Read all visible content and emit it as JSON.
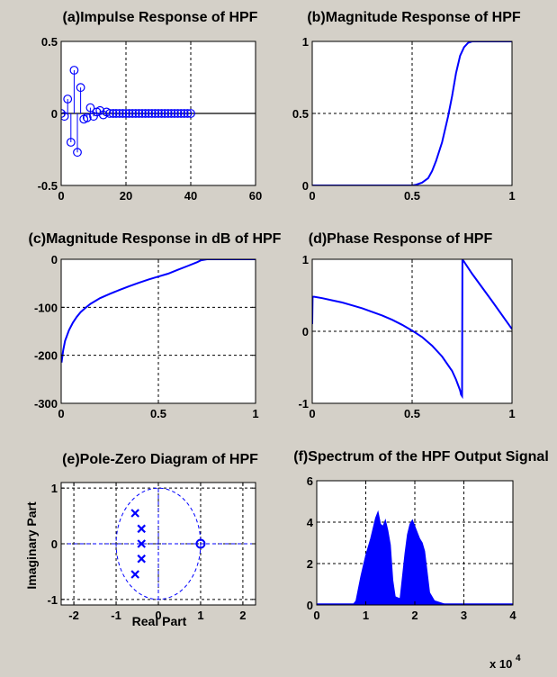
{
  "colors": {
    "figure_bg": "#d4d0c8",
    "axes_bg": "#ffffff",
    "line": "#0000ff",
    "axis": "#000000"
  },
  "chart_data": [
    {
      "id": "a",
      "type": "stem",
      "title": "(a)Impulse Response of HPF",
      "xlim": [
        0,
        60
      ],
      "ylim": [
        -0.5,
        0.5
      ],
      "xticks": [
        0,
        20,
        40,
        60
      ],
      "yticks": [
        -0.5,
        0,
        0.5
      ],
      "xticklabels": [
        "0",
        "20",
        "40",
        "60"
      ],
      "yticklabels": [
        "-0.5",
        "0",
        "0.5"
      ],
      "grid": true,
      "zero_line": true,
      "x": [
        0,
        1,
        2,
        3,
        4,
        5,
        6,
        7,
        8,
        9,
        10,
        11,
        12,
        13,
        14,
        15,
        16,
        17,
        18,
        19,
        20,
        21,
        22,
        23,
        24,
        25,
        26,
        27,
        28,
        29,
        30,
        31,
        32,
        33,
        34,
        35,
        36,
        37,
        38,
        39,
        40
      ],
      "y": [
        0,
        -0.02,
        0.1,
        -0.2,
        0.3,
        -0.27,
        0.18,
        -0.04,
        -0.03,
        0.04,
        -0.02,
        0.01,
        0.02,
        -0.01,
        0.01,
        0,
        0,
        0,
        0,
        0,
        0,
        0,
        0,
        0,
        0,
        0,
        0,
        0,
        0,
        0,
        0,
        0,
        0,
        0,
        0,
        0,
        0,
        0,
        0,
        0,
        0
      ]
    },
    {
      "id": "b",
      "type": "line",
      "title": "(b)Magnitude Response of HPF",
      "xlim": [
        0,
        1
      ],
      "ylim": [
        0,
        1
      ],
      "xticks": [
        0,
        0.5,
        1
      ],
      "yticks": [
        0,
        0.5,
        1
      ],
      "xticklabels": [
        "0",
        "0.5",
        "1"
      ],
      "yticklabels": [
        "0",
        "0.5",
        "1"
      ],
      "grid": true,
      "x": [
        0,
        0.5,
        0.52,
        0.55,
        0.58,
        0.6,
        0.62,
        0.65,
        0.68,
        0.7,
        0.72,
        0.74,
        0.76,
        0.78,
        0.8,
        1
      ],
      "y": [
        0,
        0,
        0.005,
        0.02,
        0.05,
        0.1,
        0.17,
        0.3,
        0.48,
        0.62,
        0.78,
        0.9,
        0.96,
        0.99,
        1,
        1
      ]
    },
    {
      "id": "c",
      "type": "line",
      "title": "(c)Magnitude Response in dB of HPF",
      "xlim": [
        0,
        1
      ],
      "ylim": [
        -300,
        0
      ],
      "xticks": [
        0,
        0.5,
        1
      ],
      "yticks": [
        -300,
        -200,
        -100,
        0
      ],
      "xticklabels": [
        "0",
        "0.5",
        "1"
      ],
      "yticklabels": [
        "-300",
        "-200",
        "-100",
        "0"
      ],
      "grid": true,
      "x": [
        0.002,
        0.01,
        0.02,
        0.04,
        0.06,
        0.08,
        0.1,
        0.12,
        0.15,
        0.2,
        0.25,
        0.3,
        0.35,
        0.4,
        0.45,
        0.5,
        0.55,
        0.6,
        0.65,
        0.7,
        0.72,
        0.75,
        0.8,
        1
      ],
      "y": [
        -215,
        -190,
        -170,
        -148,
        -132,
        -120,
        -110,
        -103,
        -93,
        -81,
        -72,
        -64,
        -56,
        -49,
        -42,
        -36,
        -30,
        -22,
        -14,
        -6,
        -2,
        0,
        0,
        0
      ]
    },
    {
      "id": "d",
      "type": "line",
      "title": "(d)Phase Response of HPF",
      "xlim": [
        0,
        1
      ],
      "ylim": [
        -1,
        1
      ],
      "xticks": [
        0,
        0.5,
        1
      ],
      "yticks": [
        -1,
        0,
        1
      ],
      "xticklabels": [
        "0",
        "0.5",
        "1"
      ],
      "yticklabels": [
        "-1",
        "0",
        "1"
      ],
      "grid": true,
      "x": [
        0,
        0.002,
        0.01,
        0.05,
        0.1,
        0.15,
        0.2,
        0.25,
        0.3,
        0.35,
        0.4,
        0.45,
        0.5,
        0.55,
        0.6,
        0.65,
        0.7,
        0.72,
        0.74,
        0.745,
        0.75,
        0.752,
        0.8,
        0.9,
        1
      ],
      "y": [
        0.1,
        0.48,
        0.48,
        0.46,
        0.43,
        0.4,
        0.36,
        0.32,
        0.27,
        0.22,
        0.16,
        0.09,
        0.01,
        -0.08,
        -0.2,
        -0.35,
        -0.55,
        -0.67,
        -0.82,
        -0.88,
        -0.9,
        1,
        0.8,
        0.42,
        0.03
      ]
    },
    {
      "id": "e",
      "type": "pole-zero",
      "title": "(e)Pole-Zero Diagram of HPF",
      "xlabel": "Real Part",
      "ylabel": "Imaginary Part",
      "xlim": [
        -2.3,
        2.3
      ],
      "ylim": [
        -1.1,
        1.1
      ],
      "xticks": [
        -2,
        -1,
        0,
        1,
        2
      ],
      "yticks": [
        -1,
        0,
        1
      ],
      "xticklabels": [
        "-2",
        "-1",
        "0",
        "1",
        "2"
      ],
      "yticklabels": [
        "-1",
        "0",
        "1"
      ],
      "grid": true,
      "unit_circle": true,
      "poles": [
        [
          -0.55,
          0.55
        ],
        [
          -0.4,
          0.27
        ],
        [
          -0.4,
          0
        ],
        [
          -0.4,
          -0.27
        ],
        [
          -0.55,
          -0.55
        ]
      ],
      "zeros": [
        [
          1,
          0
        ]
      ]
    },
    {
      "id": "f",
      "type": "area",
      "title": "(f)Spectrum of the HPF Output Signal",
      "xlim": [
        0,
        40000
      ],
      "ylim": [
        0,
        6
      ],
      "xticks": [
        0,
        10000,
        20000,
        30000,
        40000
      ],
      "yticks": [
        0,
        2,
        4,
        6
      ],
      "xticklabels": [
        "0",
        "1",
        "2",
        "3",
        "4"
      ],
      "yticklabels": [
        "0",
        "2",
        "4",
        "6"
      ],
      "x_exponent_label": "x 10",
      "x_exponent_power": "4",
      "grid": true,
      "x": [
        0,
        5000,
        7500,
        8000,
        9000,
        10000,
        11000,
        12000,
        12500,
        13000,
        13500,
        14000,
        14500,
        15000,
        15500,
        16000,
        17000,
        18000,
        18500,
        19000,
        19500,
        20000,
        20500,
        21000,
        21500,
        22000,
        23000,
        24000,
        26000,
        30000,
        40000
      ],
      "y": [
        0,
        0,
        0.05,
        0.2,
        1.4,
        2.4,
        3.2,
        4.2,
        4.5,
        3.9,
        3.8,
        4.1,
        3.6,
        2.9,
        1.2,
        0.4,
        0.3,
        2.5,
        3.4,
        3.9,
        4.1,
        3.8,
        3.5,
        3.2,
        3.0,
        2.6,
        0.6,
        0.2,
        0.05,
        0,
        0
      ]
    }
  ]
}
